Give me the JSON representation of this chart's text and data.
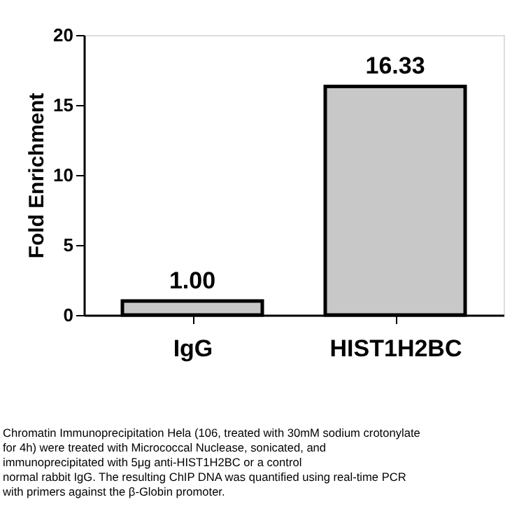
{
  "chart_data": {
    "type": "bar",
    "categories": [
      "IgG",
      "HIST1H2BC"
    ],
    "values": [
      1.0,
      16.33
    ],
    "value_labels": [
      "1.00",
      "16.33"
    ],
    "color": "#c8c8c8",
    "ylabel": "Fold Enrichment",
    "ylim": [
      0,
      20
    ],
    "yticks": [
      0,
      5,
      10,
      15,
      20
    ],
    "annotations": [
      "Chromatin Immunoprecipitation Hela (106, treated with 30mM sodium crotonylate",
      "for 4h) were treated with Micrococcal Nuclease, sonicated, and",
      "immunoprecipitated with 5μg anti-HIST1H2BC or a control",
      "normal rabbit IgG. The resulting ChIP DNA was quantified using real-time PCR",
      "with primers against the β-Globin promoter."
    ]
  }
}
